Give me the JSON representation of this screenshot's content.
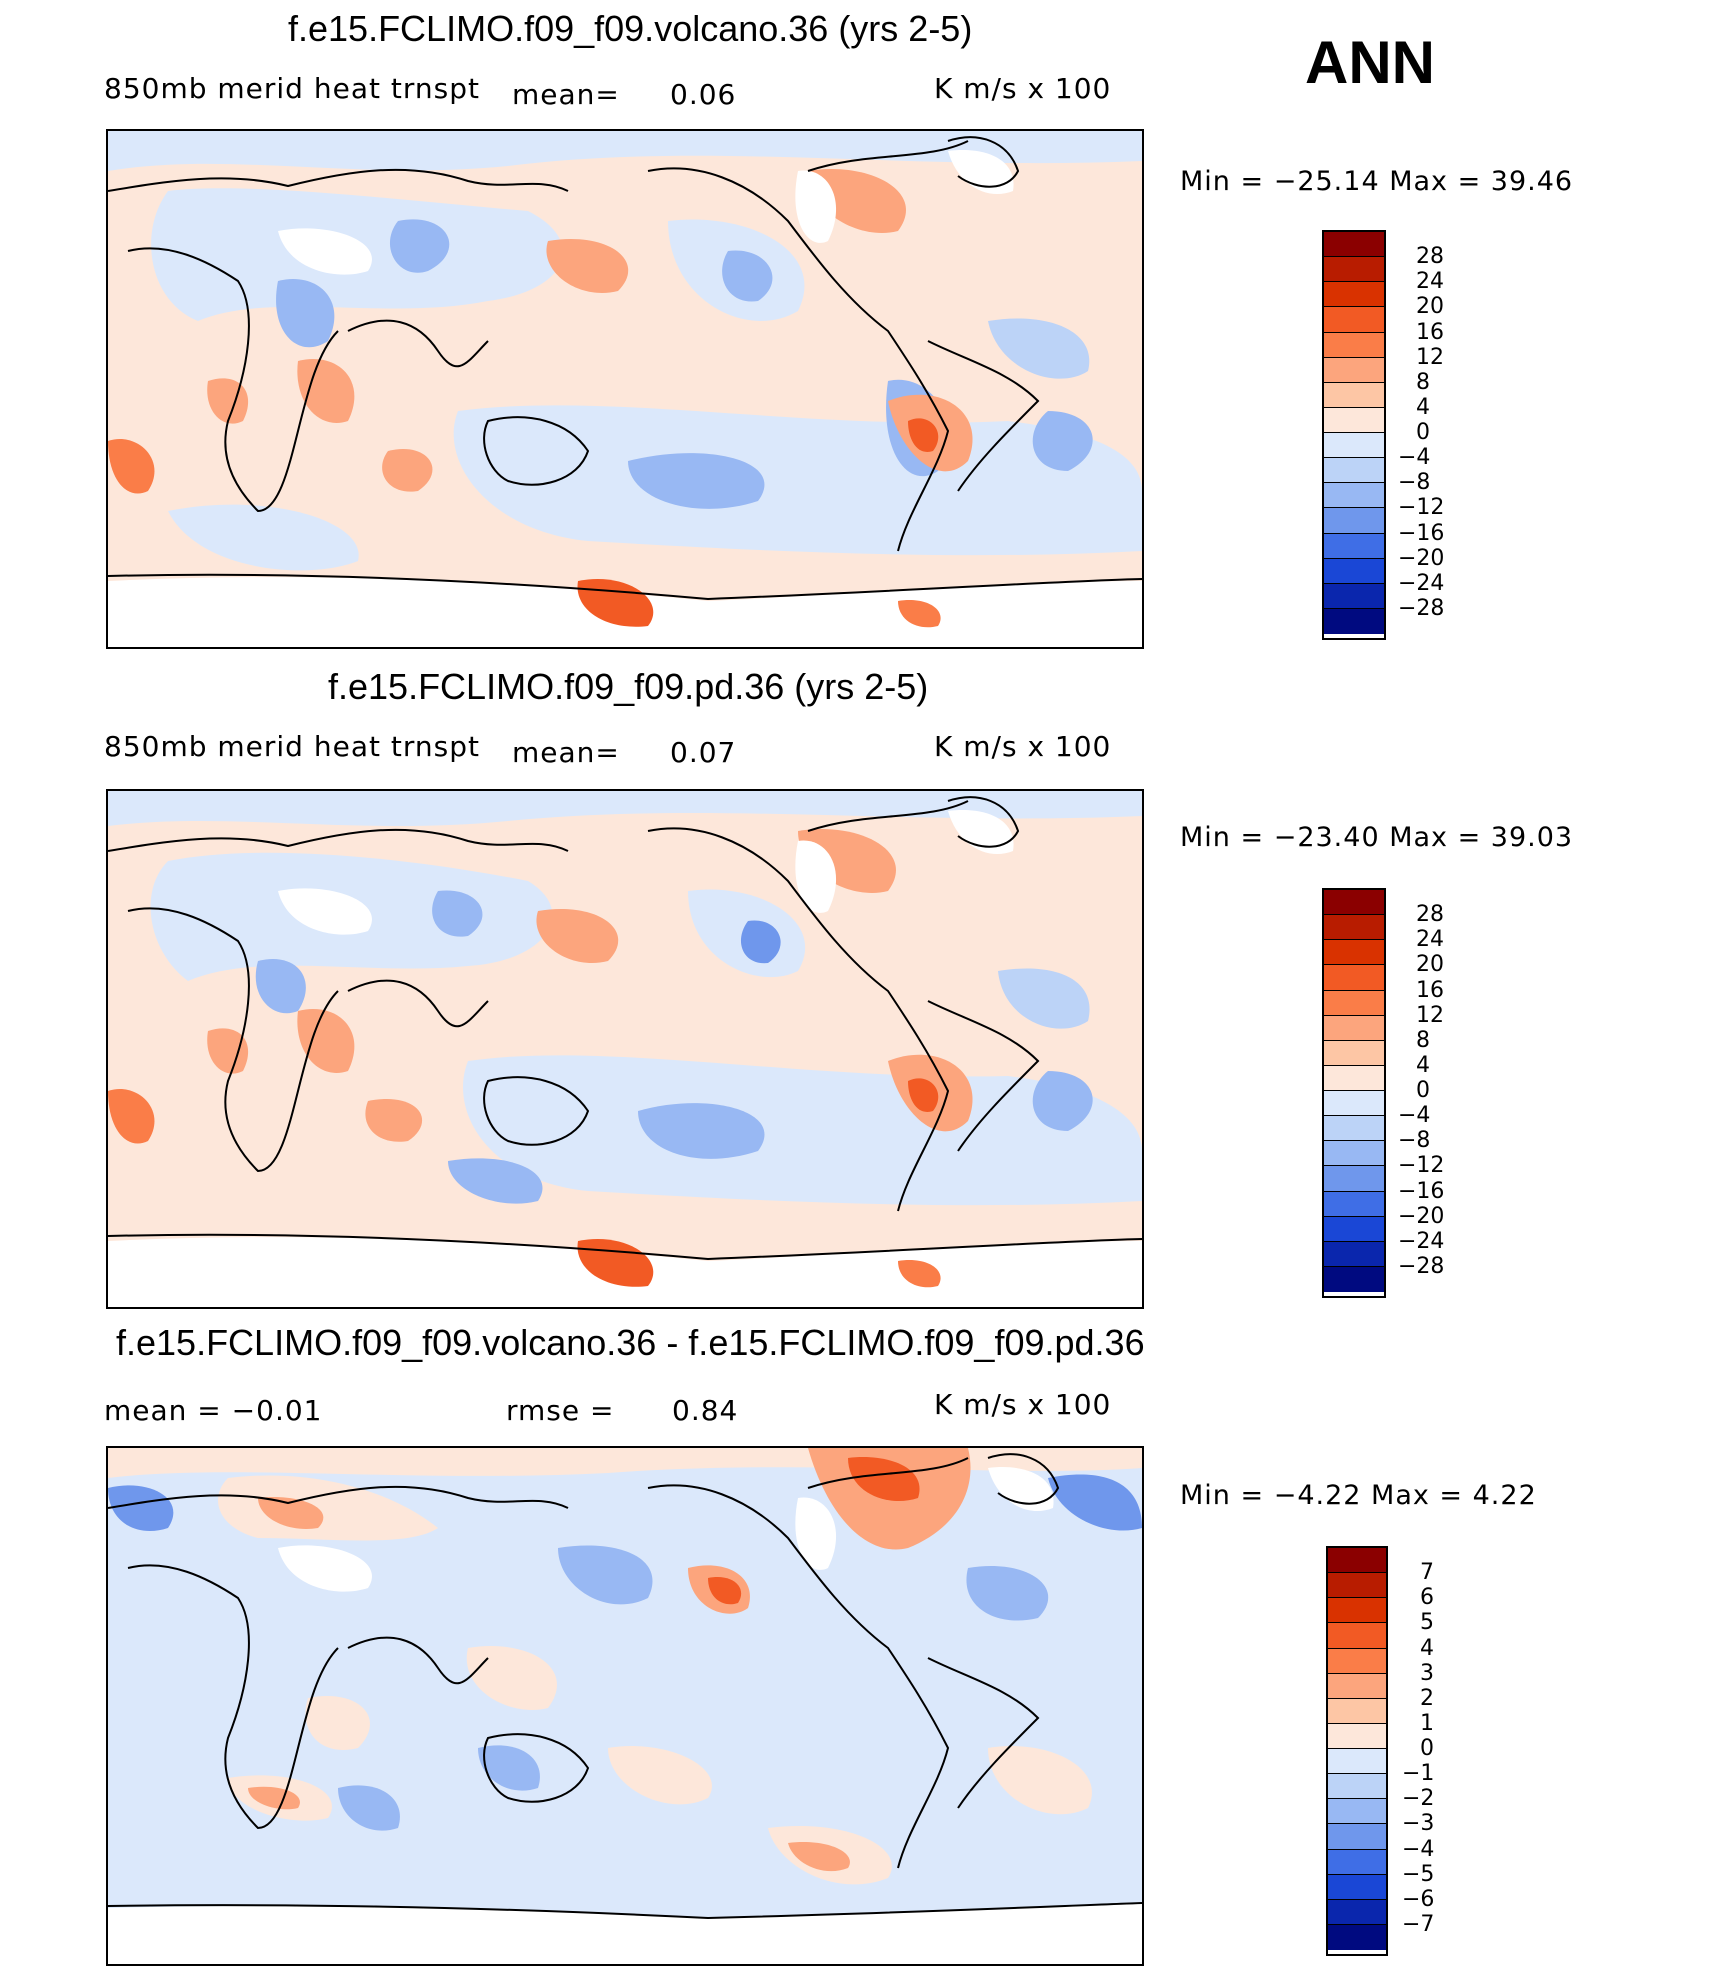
{
  "season": "ANN",
  "panels": [
    {
      "title": "f.e15.FCLIMO.f09_f09.volcano.36 (yrs 2-5)",
      "left_label": "850mb  merid  heat  trnspt",
      "mid_label": "mean=",
      "mid_value": "0.06",
      "units": "K  m/s  x  100",
      "minmax": "Min  =  −25.14  Max  =   39.46",
      "colorbar": {
        "labels": [
          "28",
          "24",
          "20",
          "16",
          "12",
          "8",
          "4",
          "0",
          "−4",
          "−8",
          "−12",
          "−16",
          "−20",
          "−24",
          "−28"
        ],
        "colors": [
          "#8b0000",
          "#b81c00",
          "#d93200",
          "#f25a24",
          "#fa7d48",
          "#fca57d",
          "#fdc6a5",
          "#fde7da",
          "#dbe8fb",
          "#bcd3f7",
          "#98b8f3",
          "#6f97ec",
          "#3f6ee6",
          "#1a47d6",
          "#0a26ad",
          "#000a80"
        ]
      }
    },
    {
      "title": "f.e15.FCLIMO.f09_f09.pd.36 (yrs 2-5)",
      "left_label": "850mb  merid  heat  trnspt",
      "mid_label": "mean=",
      "mid_value": "0.07",
      "units": "K  m/s  x  100",
      "minmax": "Min  =  −23.40  Max  =   39.03",
      "colorbar": {
        "labels": [
          "28",
          "24",
          "20",
          "16",
          "12",
          "8",
          "4",
          "0",
          "−4",
          "−8",
          "−12",
          "−16",
          "−20",
          "−24",
          "−28"
        ],
        "colors": [
          "#8b0000",
          "#b81c00",
          "#d93200",
          "#f25a24",
          "#fa7d48",
          "#fca57d",
          "#fdc6a5",
          "#fde7da",
          "#dbe8fb",
          "#bcd3f7",
          "#98b8f3",
          "#6f97ec",
          "#3f6ee6",
          "#1a47d6",
          "#0a26ad",
          "#000a80"
        ]
      }
    },
    {
      "title": "f.e15.FCLIMO.f09_f09.volcano.36 - f.e15.FCLIMO.f09_f09.pd.36",
      "left_label": "mean  =    −0.01",
      "mid_label": "rmse  =",
      "mid_value": "0.84",
      "units": "K  m/s  x  100",
      "minmax": "Min  =    −4.22  Max  =     4.22",
      "colorbar": {
        "labels": [
          "7",
          "6",
          "5",
          "4",
          "3",
          "2",
          "1",
          "0",
          "−1",
          "−2",
          "−3",
          "−4",
          "−5",
          "−6",
          "−7"
        ],
        "colors": [
          "#8b0000",
          "#b81c00",
          "#d93200",
          "#f25a24",
          "#fa7d48",
          "#fca57d",
          "#fdc6a5",
          "#fde7da",
          "#dbe8fb",
          "#bcd3f7",
          "#98b8f3",
          "#6f97ec",
          "#3f6ee6",
          "#1a47d6",
          "#0a26ad",
          "#000a80"
        ]
      }
    }
  ],
  "map_colors": {
    "background_warm": "#fde7da",
    "cool_light": "#dbe8fb",
    "cool_mid": "#98b8f3",
    "cool_strong": "#3f6ee6",
    "warm_mid": "#fca57d",
    "warm_strong": "#f25a24",
    "land_missing": "#ffffff",
    "coast": "#000000"
  }
}
